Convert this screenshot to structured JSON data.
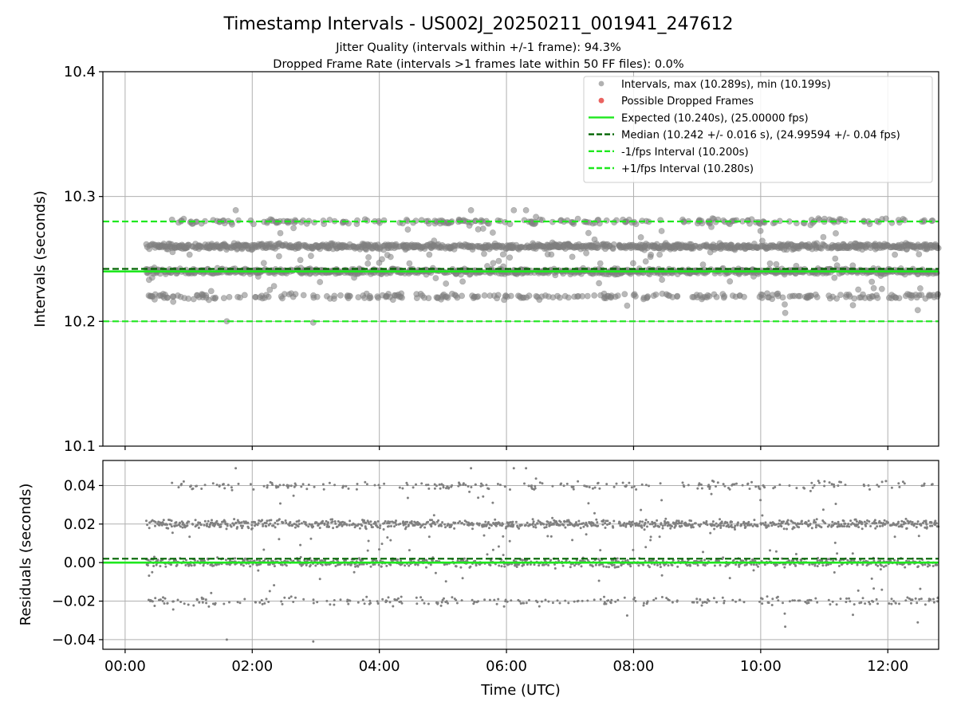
{
  "title": "Timestamp Intervals - US002J_20250211_001941_247612",
  "subtitle_lines": [
    "Jitter Quality (intervals within +/-1 frame): 94.3%",
    "Dropped Frame Rate (intervals >1 frames late within 50 FF files): 0.0%"
  ],
  "colors": {
    "intervals": "#808080",
    "dropped": "#e8524f",
    "expected": "#1ee81e",
    "median": "#006400",
    "fps_band": "#1ee81e",
    "grid": "#b0b0b0"
  },
  "chart_data": [
    {
      "type": "scatter",
      "ylabel": "Intervals (seconds)",
      "ylim": [
        10.1,
        10.4
      ],
      "yticks": [
        10.1,
        10.2,
        10.3,
        10.4
      ],
      "ytick_labels": [
        "10.1",
        "10.2",
        "10.3",
        "10.4"
      ],
      "xlim_hours": [
        -0.35,
        12.8
      ],
      "grid": true,
      "legend_position": "top-right",
      "legend": [
        {
          "label": "Intervals, max (10.289s), min (10.199s)",
          "kind": "marker",
          "color": "#a8a8a8"
        },
        {
          "label": "Possible Dropped Frames",
          "kind": "marker",
          "color": "#e8524f"
        },
        {
          "label": "Expected (10.240s), (25.00000 fps)",
          "kind": "solid",
          "color": "#1ee81e"
        },
        {
          "label": "Median (10.242 +/- 0.016 s), (24.99594 +/- 0.04 fps)",
          "kind": "dashed",
          "color": "#006400"
        },
        {
          "label": "-1/fps Interval (10.200s)",
          "kind": "dashed",
          "color": "#1ee81e"
        },
        {
          "label": "+1/fps Interval (10.280s)",
          "kind": "dashed",
          "color": "#1ee81e"
        }
      ],
      "reference_lines": {
        "expected": 10.24,
        "median": 10.242,
        "minus_1fps": 10.2,
        "plus_1fps": 10.28
      },
      "series": [
        {
          "name": "Intervals, max (10.289s), min (10.199s)",
          "time_start_hours": 0.33,
          "time_end_hours": 12.8,
          "levels": [
            10.22,
            10.24,
            10.26,
            10.28
          ],
          "level_weights": [
            0.12,
            0.38,
            0.4,
            0.1
          ],
          "max": 10.289,
          "min": 10.199
        },
        {
          "name": "Possible Dropped Frames",
          "count": 0
        }
      ]
    },
    {
      "type": "scatter",
      "ylabel": "Residuals (seconds)",
      "xlabel": "Time (UTC)",
      "ylim": [
        -0.045,
        0.053
      ],
      "yticks": [
        -0.04,
        -0.02,
        0.0,
        0.02,
        0.04
      ],
      "ytick_labels": [
        "−0.04",
        "−0.02",
        "0.00",
        "0.02",
        "0.04"
      ],
      "xticks_hours": [
        0,
        2,
        4,
        6,
        8,
        10,
        12
      ],
      "xtick_labels": [
        "00:00",
        "02:00",
        "04:00",
        "06:00",
        "08:00",
        "10:00",
        "12:00"
      ],
      "grid": true,
      "reference_lines": {
        "zero": 0.0,
        "median_residual": 0.002
      },
      "series": [
        {
          "name": "Residuals",
          "levels": [
            -0.02,
            0.0,
            0.02,
            0.04
          ],
          "level_weights": [
            0.12,
            0.38,
            0.4,
            0.1
          ],
          "max": 0.049,
          "min": -0.041
        }
      ]
    }
  ]
}
